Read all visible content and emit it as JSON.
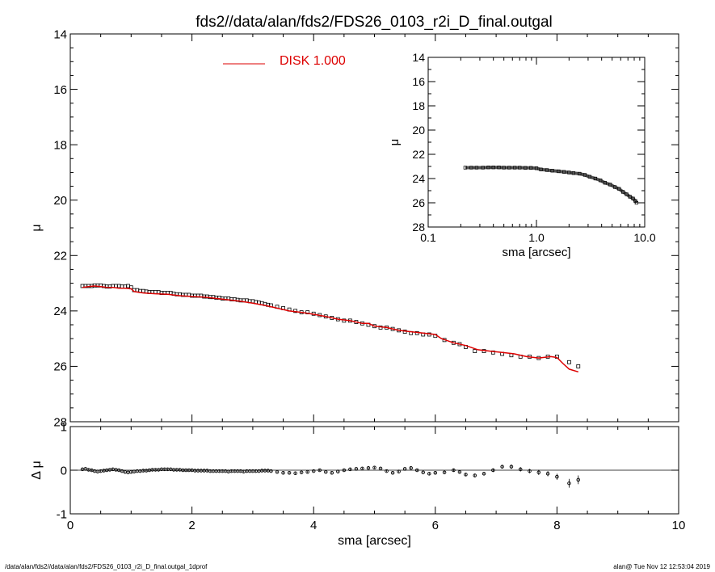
{
  "title": "fds2//data/alan/fds2/FDS26_0103_r2i_D_final.outgal",
  "footer_left": "/data/alan/fds2//data/alan/fds2/FDS26_0103_r2i_D_final.outgal_1dprof",
  "footer_right": "alan@  Tue Nov 12 12:53:04 2019",
  "colors": {
    "model": "#dd0000",
    "axis": "#000000",
    "marker": "#000000"
  },
  "chart_data": [
    {
      "id": "main",
      "type": "scatter",
      "xlabel": "",
      "ylabel": "μ",
      "xlim": [
        0,
        10
      ],
      "ylim": [
        28,
        14
      ],
      "y_inverted": true,
      "xticks": [],
      "yticks": [
        14,
        16,
        18,
        20,
        22,
        24,
        26,
        28
      ],
      "legend": {
        "label": "DISK  1.000",
        "position": "top"
      },
      "series": [
        {
          "kind": "points",
          "x": [
            0.2,
            0.25,
            0.3,
            0.35,
            0.4,
            0.45,
            0.5,
            0.55,
            0.6,
            0.65,
            0.7,
            0.75,
            0.8,
            0.85,
            0.9,
            0.95,
            1.0,
            1.05,
            1.1,
            1.15,
            1.2,
            1.25,
            1.3,
            1.35,
            1.4,
            1.45,
            1.5,
            1.55,
            1.6,
            1.65,
            1.7,
            1.75,
            1.8,
            1.85,
            1.9,
            1.95,
            2.0,
            2.05,
            2.1,
            2.15,
            2.2,
            2.25,
            2.3,
            2.35,
            2.4,
            2.45,
            2.5,
            2.55,
            2.6,
            2.65,
            2.7,
            2.75,
            2.8,
            2.85,
            2.9,
            2.95,
            3.0,
            3.05,
            3.1,
            3.15,
            3.2,
            3.25,
            3.3,
            3.4,
            3.5,
            3.6,
            3.7,
            3.8,
            3.9,
            4.0,
            4.1,
            4.2,
            4.3,
            4.4,
            4.5,
            4.6,
            4.7,
            4.8,
            4.9,
            5.0,
            5.1,
            5.2,
            5.3,
            5.4,
            5.5,
            5.6,
            5.7,
            5.8,
            5.9,
            6.0,
            6.15,
            6.3,
            6.4,
            6.5,
            6.65,
            6.8,
            6.95,
            7.1,
            7.25,
            7.4,
            7.55,
            7.7,
            7.85,
            8.0,
            8.2,
            8.35
          ],
          "y": [
            23.1,
            23.1,
            23.1,
            23.1,
            23.08,
            23.08,
            23.08,
            23.1,
            23.12,
            23.12,
            23.1,
            23.1,
            23.1,
            23.12,
            23.12,
            23.1,
            23.15,
            23.25,
            23.25,
            23.28,
            23.28,
            23.3,
            23.32,
            23.32,
            23.32,
            23.32,
            23.35,
            23.35,
            23.35,
            23.35,
            23.38,
            23.4,
            23.4,
            23.42,
            23.42,
            23.42,
            23.45,
            23.45,
            23.45,
            23.45,
            23.48,
            23.48,
            23.5,
            23.5,
            23.52,
            23.52,
            23.55,
            23.55,
            23.55,
            23.58,
            23.58,
            23.6,
            23.62,
            23.62,
            23.62,
            23.65,
            23.65,
            23.68,
            23.7,
            23.72,
            23.75,
            23.78,
            23.8,
            23.85,
            23.9,
            23.95,
            24.0,
            24.05,
            24.05,
            24.1,
            24.15,
            24.2,
            24.25,
            24.3,
            24.35,
            24.35,
            24.4,
            24.45,
            24.5,
            24.55,
            24.6,
            24.6,
            24.65,
            24.7,
            24.75,
            24.8,
            24.8,
            24.85,
            24.85,
            24.9,
            25.05,
            25.15,
            25.2,
            25.3,
            25.45,
            25.45,
            25.5,
            25.55,
            25.6,
            25.65,
            25.65,
            25.7,
            25.65,
            25.65,
            25.85,
            26.0
          ]
        },
        {
          "kind": "line",
          "name": "DISK  1.000",
          "color": "#dd0000",
          "x": [
            0.2,
            0.3,
            0.4,
            0.5,
            0.6,
            0.7,
            0.8,
            0.9,
            1.0,
            1.05,
            1.2,
            1.4,
            1.6,
            1.8,
            2.0,
            2.2,
            2.4,
            2.6,
            2.8,
            3.0,
            3.2,
            3.4,
            3.6,
            3.8,
            4.0,
            4.2,
            4.4,
            4.6,
            4.8,
            4.9,
            5.0,
            5.2,
            5.4,
            5.6,
            5.8,
            6.0,
            6.1,
            6.3,
            6.5,
            6.7,
            6.9,
            7.1,
            7.3,
            7.5,
            7.7,
            7.9,
            8.0,
            8.1,
            8.2,
            8.35
          ],
          "y": [
            23.15,
            23.12,
            23.1,
            23.12,
            23.15,
            23.15,
            23.18,
            23.18,
            23.2,
            23.3,
            23.35,
            23.38,
            23.4,
            23.45,
            23.48,
            23.5,
            23.55,
            23.6,
            23.65,
            23.72,
            23.8,
            23.9,
            24.0,
            24.05,
            24.12,
            24.2,
            24.3,
            24.35,
            24.45,
            24.45,
            24.55,
            24.6,
            24.7,
            24.75,
            24.8,
            24.85,
            25.0,
            25.15,
            25.25,
            25.4,
            25.45,
            25.5,
            25.55,
            25.65,
            25.7,
            25.65,
            25.68,
            25.9,
            26.1,
            26.2
          ]
        }
      ]
    },
    {
      "id": "residual",
      "type": "scatter",
      "xlabel": "sma [arcsec]",
      "ylabel": "Δ μ",
      "xlim": [
        0,
        10
      ],
      "ylim": [
        -1,
        1
      ],
      "xticks": [
        0,
        2,
        4,
        6,
        8,
        10
      ],
      "yticks": [
        -1,
        0,
        1
      ],
      "zero_line": true,
      "series": [
        {
          "kind": "points",
          "x": [
            0.2,
            0.25,
            0.3,
            0.35,
            0.4,
            0.45,
            0.5,
            0.55,
            0.6,
            0.65,
            0.7,
            0.75,
            0.8,
            0.85,
            0.9,
            0.95,
            1.0,
            1.05,
            1.1,
            1.15,
            1.2,
            1.25,
            1.3,
            1.35,
            1.4,
            1.45,
            1.5,
            1.55,
            1.6,
            1.65,
            1.7,
            1.75,
            1.8,
            1.85,
            1.9,
            1.95,
            2.0,
            2.05,
            2.1,
            2.15,
            2.2,
            2.25,
            2.3,
            2.35,
            2.4,
            2.45,
            2.5,
            2.55,
            2.6,
            2.65,
            2.7,
            2.75,
            2.8,
            2.85,
            2.9,
            2.95,
            3.0,
            3.05,
            3.1,
            3.15,
            3.2,
            3.25,
            3.3,
            3.4,
            3.5,
            3.6,
            3.7,
            3.8,
            3.9,
            4.0,
            4.1,
            4.2,
            4.3,
            4.4,
            4.5,
            4.6,
            4.7,
            4.8,
            4.9,
            5.0,
            5.1,
            5.2,
            5.3,
            5.4,
            5.5,
            5.6,
            5.7,
            5.8,
            5.9,
            6.0,
            6.15,
            6.3,
            6.4,
            6.5,
            6.65,
            6.8,
            6.95,
            7.1,
            7.25,
            7.4,
            7.55,
            7.7,
            7.85,
            8.0,
            8.2,
            8.35
          ],
          "y": [
            0.02,
            0.03,
            0.01,
            0.0,
            -0.02,
            -0.03,
            -0.02,
            -0.01,
            0.0,
            0.01,
            0.02,
            0.01,
            0.0,
            -0.02,
            -0.04,
            -0.05,
            -0.04,
            -0.03,
            -0.02,
            -0.02,
            -0.01,
            -0.01,
            0.0,
            0.01,
            0.01,
            0.01,
            0.02,
            0.02,
            0.02,
            0.02,
            0.01,
            0.01,
            0.01,
            0.0,
            0.0,
            0.0,
            0.0,
            -0.01,
            -0.01,
            -0.01,
            -0.01,
            -0.01,
            -0.02,
            -0.02,
            -0.02,
            -0.02,
            -0.02,
            -0.02,
            -0.03,
            -0.02,
            -0.02,
            -0.02,
            -0.02,
            -0.03,
            -0.02,
            -0.02,
            -0.02,
            -0.02,
            -0.02,
            -0.01,
            -0.01,
            -0.01,
            -0.02,
            -0.04,
            -0.06,
            -0.06,
            -0.07,
            -0.05,
            -0.04,
            -0.02,
            0.0,
            -0.04,
            -0.06,
            -0.03,
            0.0,
            0.02,
            0.03,
            0.04,
            0.05,
            0.06,
            0.04,
            -0.02,
            -0.06,
            -0.03,
            0.03,
            0.05,
            0.0,
            -0.05,
            -0.08,
            -0.06,
            -0.05,
            0.0,
            -0.04,
            -0.1,
            -0.12,
            -0.08,
            0.0,
            0.08,
            0.08,
            0.02,
            -0.02,
            -0.05,
            -0.08,
            -0.15,
            -0.3,
            -0.22
          ],
          "errors": [
            0.02,
            0.02,
            0.02,
            0.02,
            0.02,
            0.02,
            0.02,
            0.02,
            0.02,
            0.02,
            0.02,
            0.02,
            0.02,
            0.02,
            0.02,
            0.02,
            0.02,
            0.02,
            0.02,
            0.02,
            0.02,
            0.02,
            0.02,
            0.02,
            0.02,
            0.02,
            0.02,
            0.02,
            0.02,
            0.02,
            0.02,
            0.02,
            0.02,
            0.02,
            0.02,
            0.02,
            0.02,
            0.02,
            0.02,
            0.02,
            0.02,
            0.02,
            0.02,
            0.02,
            0.02,
            0.02,
            0.02,
            0.02,
            0.02,
            0.02,
            0.02,
            0.02,
            0.02,
            0.02,
            0.02,
            0.02,
            0.02,
            0.02,
            0.02,
            0.02,
            0.02,
            0.02,
            0.02,
            0.02,
            0.02,
            0.02,
            0.02,
            0.02,
            0.02,
            0.02,
            0.02,
            0.02,
            0.02,
            0.02,
            0.02,
            0.02,
            0.02,
            0.02,
            0.02,
            0.02,
            0.02,
            0.02,
            0.02,
            0.02,
            0.02,
            0.02,
            0.02,
            0.02,
            0.03,
            0.03,
            0.03,
            0.03,
            0.03,
            0.03,
            0.04,
            0.04,
            0.04,
            0.04,
            0.05,
            0.05,
            0.05,
            0.06,
            0.06,
            0.07,
            0.1,
            0.1
          ]
        }
      ]
    },
    {
      "id": "inset",
      "type": "scatter",
      "xlabel": "sma [arcsec]",
      "ylabel": "μ",
      "x_scale": "log",
      "xlim": [
        0.1,
        10.0
      ],
      "ylim": [
        28,
        14
      ],
      "y_inverted": true,
      "xticks": [
        0.1,
        1.0,
        10.0
      ],
      "xtick_labels": [
        "0.1",
        "1.0",
        "10.0"
      ],
      "yticks": [
        14,
        16,
        18,
        20,
        22,
        24,
        26,
        28
      ],
      "series": [
        {
          "kind": "points",
          "x": [
            0.22,
            0.25,
            0.28,
            0.32,
            0.36,
            0.4,
            0.45,
            0.5,
            0.56,
            0.63,
            0.7,
            0.79,
            0.89,
            1.0,
            1.1,
            1.25,
            1.4,
            1.6,
            1.8,
            2.0,
            2.2,
            2.5,
            2.8,
            3.1,
            3.5,
            3.9,
            4.3,
            4.8,
            5.3,
            5.8,
            6.3,
            6.8,
            7.3,
            7.8,
            8.2,
            8.4
          ],
          "y": [
            23.1,
            23.1,
            23.1,
            23.1,
            23.08,
            23.08,
            23.08,
            23.1,
            23.1,
            23.1,
            23.1,
            23.12,
            23.12,
            23.15,
            23.25,
            23.3,
            23.35,
            23.4,
            23.45,
            23.5,
            23.55,
            23.6,
            23.7,
            23.85,
            24.0,
            24.15,
            24.35,
            24.5,
            24.7,
            24.85,
            25.1,
            25.3,
            25.5,
            25.65,
            25.85,
            26.0
          ]
        }
      ]
    }
  ]
}
